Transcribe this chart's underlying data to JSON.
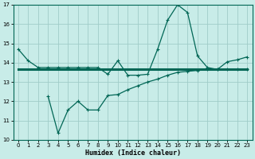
{
  "xlabel": "Humidex (Indice chaleur)",
  "xlim": [
    -0.5,
    23.5
  ],
  "ylim": [
    10,
    17
  ],
  "yticks": [
    10,
    11,
    12,
    13,
    14,
    15,
    16,
    17
  ],
  "xticks": [
    0,
    1,
    2,
    3,
    4,
    5,
    6,
    7,
    8,
    9,
    10,
    11,
    12,
    13,
    14,
    15,
    16,
    17,
    18,
    19,
    20,
    21,
    22,
    23
  ],
  "background_color": "#c8ece8",
  "grid_color": "#a0ccc8",
  "line_color": "#006655",
  "line1_x": [
    0,
    1,
    2,
    3,
    4,
    5,
    6,
    7,
    8,
    9,
    10,
    11,
    12,
    13,
    14,
    15,
    16,
    17,
    18,
    19,
    20,
    21,
    22,
    23
  ],
  "line1_y": [
    14.7,
    14.1,
    13.75,
    13.75,
    13.75,
    13.75,
    13.75,
    13.75,
    13.75,
    13.4,
    14.1,
    13.35,
    13.35,
    13.4,
    14.7,
    16.2,
    17.0,
    16.6,
    14.35,
    13.75,
    13.65,
    14.05,
    14.15,
    14.3
  ],
  "line2_x": [
    0,
    23
  ],
  "line2_y": [
    13.65,
    13.65
  ],
  "line3_x": [
    3,
    4,
    5,
    6,
    7,
    8,
    9,
    10,
    11,
    12,
    13,
    14,
    15,
    16,
    17,
    18,
    19,
    20,
    21,
    22,
    23
  ],
  "line3_y": [
    12.25,
    10.35,
    11.55,
    12.0,
    11.55,
    11.55,
    12.3,
    12.35,
    12.6,
    12.8,
    13.0,
    13.15,
    13.35,
    13.5,
    13.55,
    13.6,
    13.65,
    13.65,
    13.65,
    13.65,
    13.65
  ]
}
